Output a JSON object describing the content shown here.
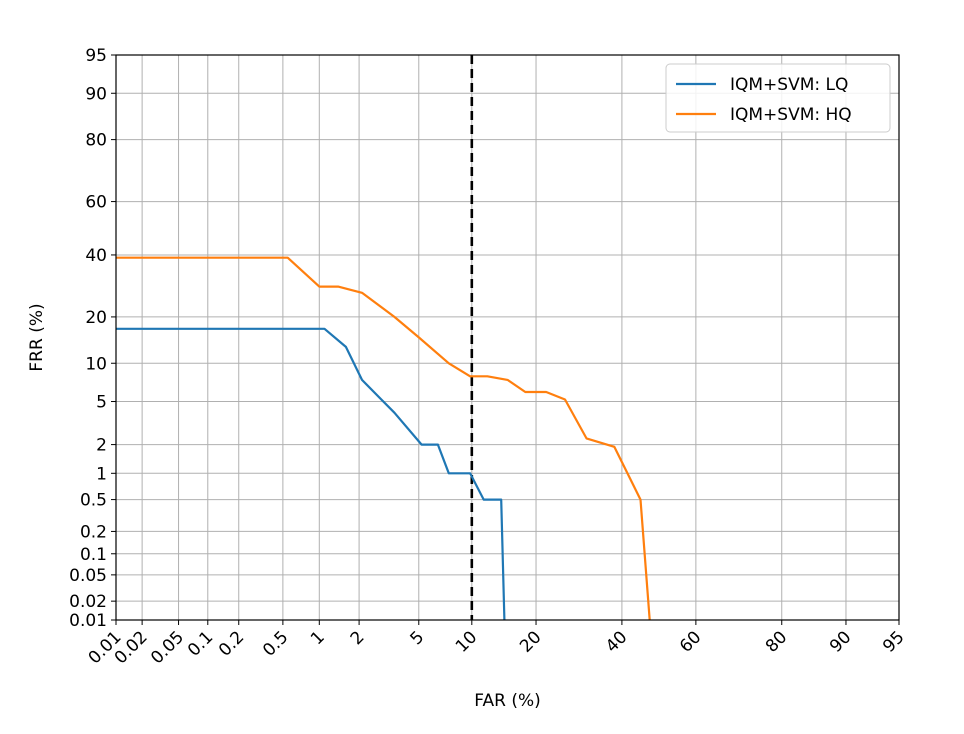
{
  "chart_data": {
    "type": "line",
    "title": "",
    "xlabel": "FAR (%)",
    "ylabel": "FRR (%)",
    "scale": "normal-deviate (DET)",
    "grid": true,
    "legend_placement": "top-right",
    "x_ticks": [
      0.01,
      0.02,
      0.05,
      0.1,
      0.2,
      0.5,
      1,
      2,
      5,
      10,
      20,
      40,
      60,
      80,
      90,
      95
    ],
    "x_tick_labels": [
      "0.01",
      "0.02",
      "0.05",
      "0.1",
      "0.2",
      "0.5",
      "1",
      "2",
      "5",
      "10",
      "20",
      "40",
      "60",
      "80",
      "90",
      "95"
    ],
    "y_ticks": [
      0.01,
      0.02,
      0.05,
      0.1,
      0.2,
      0.5,
      1,
      2,
      5,
      10,
      20,
      40,
      60,
      80,
      90,
      95
    ],
    "y_tick_labels": [
      "0.01",
      "0.02",
      "0.05",
      "0.1",
      "0.2",
      "0.5",
      "1",
      "2",
      "5",
      "10",
      "20",
      "40",
      "60",
      "80",
      "90",
      "95"
    ],
    "xlim": [
      0.01,
      95
    ],
    "ylim": [
      0.01,
      95
    ],
    "reference_line": {
      "axis": "x",
      "value": 10,
      "style": "dashed",
      "color": "#000000"
    },
    "series": [
      {
        "name": "IQM+SVM: LQ",
        "color": "#1f77b4",
        "points": [
          [
            0.01,
            17
          ],
          [
            1.1,
            17
          ],
          [
            1.6,
            13
          ],
          [
            2.1,
            7.5
          ],
          [
            3.5,
            4
          ],
          [
            5.2,
            2
          ],
          [
            6.5,
            2
          ],
          [
            7.5,
            1
          ],
          [
            9.8,
            1
          ],
          [
            11.5,
            0.5
          ],
          [
            14.0,
            0.5
          ],
          [
            14.5,
            0.01
          ]
        ]
      },
      {
        "name": "IQM+SVM: HQ",
        "color": "#ff7f0e",
        "points": [
          [
            0.01,
            39
          ],
          [
            0.55,
            39
          ],
          [
            1.0,
            29
          ],
          [
            1.4,
            29
          ],
          [
            2.1,
            27
          ],
          [
            3.5,
            20
          ],
          [
            5.0,
            15
          ],
          [
            7.5,
            10
          ],
          [
            9.8,
            8
          ],
          [
            12,
            8
          ],
          [
            15,
            7.5
          ],
          [
            18,
            6
          ],
          [
            22,
            6
          ],
          [
            26,
            5.2
          ],
          [
            31,
            2.3
          ],
          [
            38,
            1.9
          ],
          [
            45,
            0.5
          ],
          [
            47.5,
            0.01
          ]
        ]
      }
    ]
  }
}
